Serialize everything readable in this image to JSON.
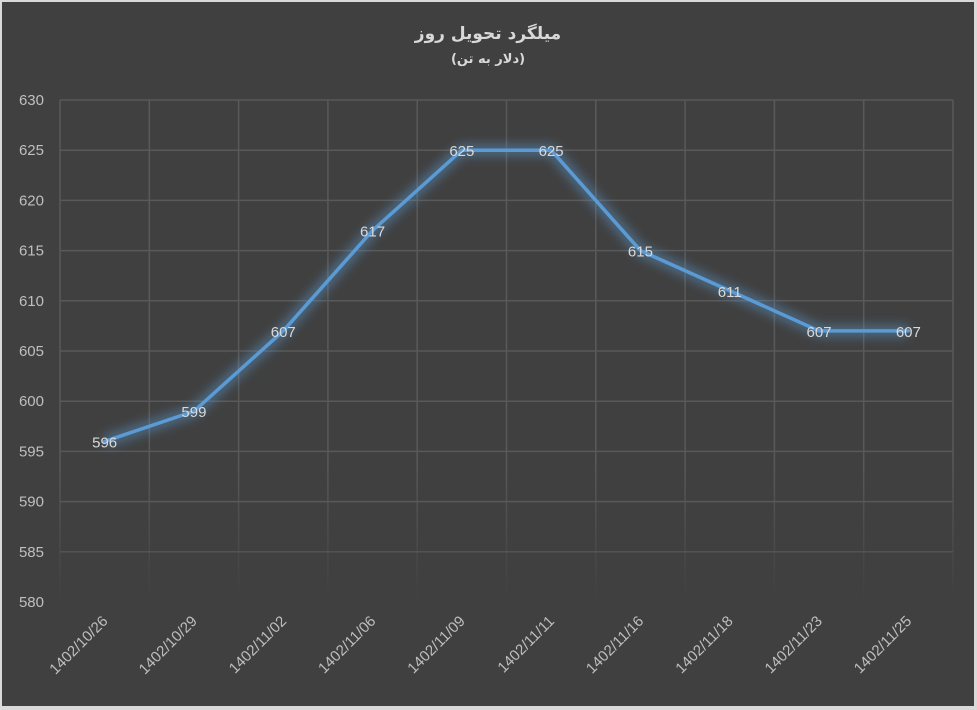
{
  "chart_data": {
    "type": "line",
    "title": "میلگرد تحویل روز",
    "subtitle": "(دلار به تن)",
    "xlabel": "",
    "ylabel": "",
    "categories": [
      "1402/10/26",
      "1402/10/29",
      "1402/11/02",
      "1402/11/06",
      "1402/11/09",
      "1402/11/11",
      "1402/11/16",
      "1402/11/18",
      "1402/11/23",
      "1402/11/25"
    ],
    "series": [
      {
        "name": "میلگرد تحویل روز",
        "values": [
          596,
          599,
          607,
          617,
          625,
          625,
          615,
          611,
          607,
          607
        ]
      }
    ],
    "ylim": [
      580,
      630
    ],
    "yticks": [
      580,
      585,
      590,
      595,
      600,
      605,
      610,
      615,
      620,
      625,
      630
    ],
    "grid": true,
    "legend": "none",
    "data_labels": true
  },
  "colors": {
    "background": "#404040",
    "border": "#d9d9d9",
    "grid": "#595959",
    "line": "#5b9bd5",
    "text": "#d9d9d9"
  }
}
